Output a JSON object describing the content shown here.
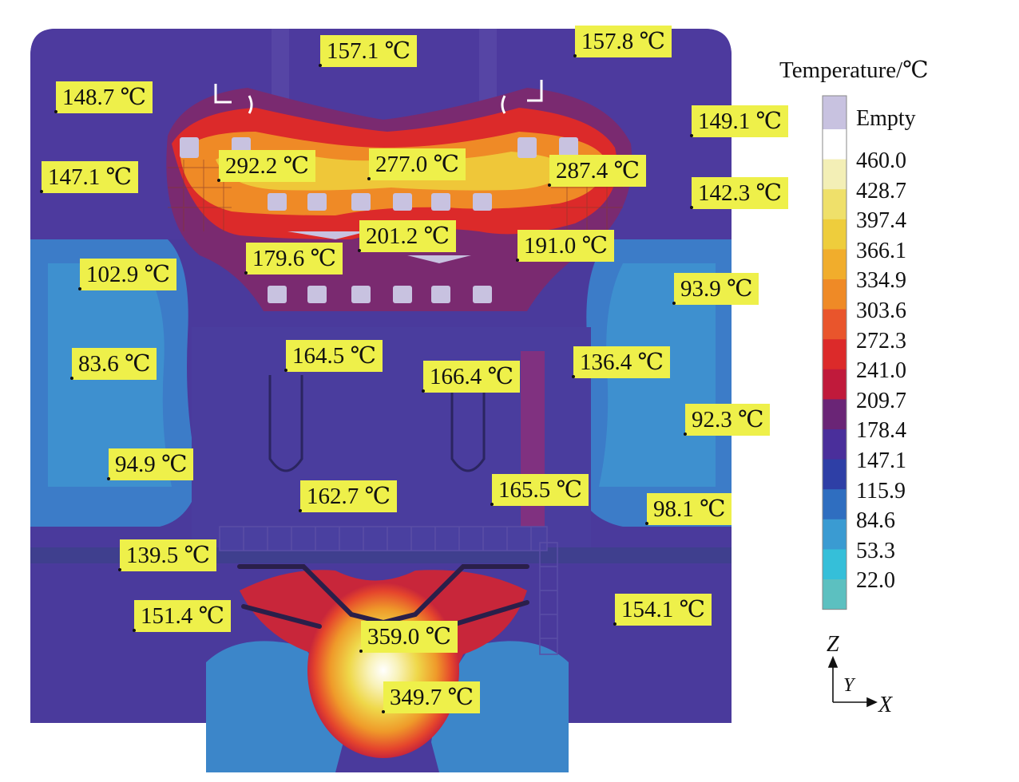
{
  "legend": {
    "title": "Temperature/℃",
    "empty_label": "Empty",
    "empty_color": "#c8c2e0",
    "ticks": [
      "460.0",
      "428.7",
      "397.4",
      "366.1",
      "334.9",
      "303.6",
      "272.3",
      "241.0",
      "209.7",
      "178.4",
      "147.1",
      "115.9",
      "84.6",
      "53.3",
      "22.0"
    ],
    "bands": [
      "#ffffff",
      "#f3efb6",
      "#efe06a",
      "#eecd3c",
      "#f1ad2c",
      "#ef8a26",
      "#e9552c",
      "#dc2a2a",
      "#c01a3b",
      "#6a2576",
      "#4a2f9b",
      "#2e3fa6",
      "#2f6ec0",
      "#3a9bd2",
      "#35bfd9",
      "#5cc0c0"
    ]
  },
  "axes": {
    "z": "Z",
    "y": "Y",
    "x": "X"
  },
  "labels": [
    "157.1 ℃",
    "157.8 ℃",
    "148.7 ℃",
    "149.1 ℃",
    "147.1 ℃",
    "292.2 ℃",
    "277.0 ℃",
    "287.4 ℃",
    "142.3 ℃",
    "201.2 ℃",
    "179.6 ℃",
    "191.0 ℃",
    "102.9 ℃",
    "93.9 ℃",
    "83.6 ℃",
    "164.5 ℃",
    "166.4 ℃",
    "136.4 ℃",
    "92.3 ℃",
    "94.9 ℃",
    "162.7 ℃",
    "165.5 ℃",
    "98.1 ℃",
    "139.5 ℃",
    "151.4 ℃",
    "154.1 ℃",
    "359.0 ℃",
    "349.7 ℃"
  ]
}
